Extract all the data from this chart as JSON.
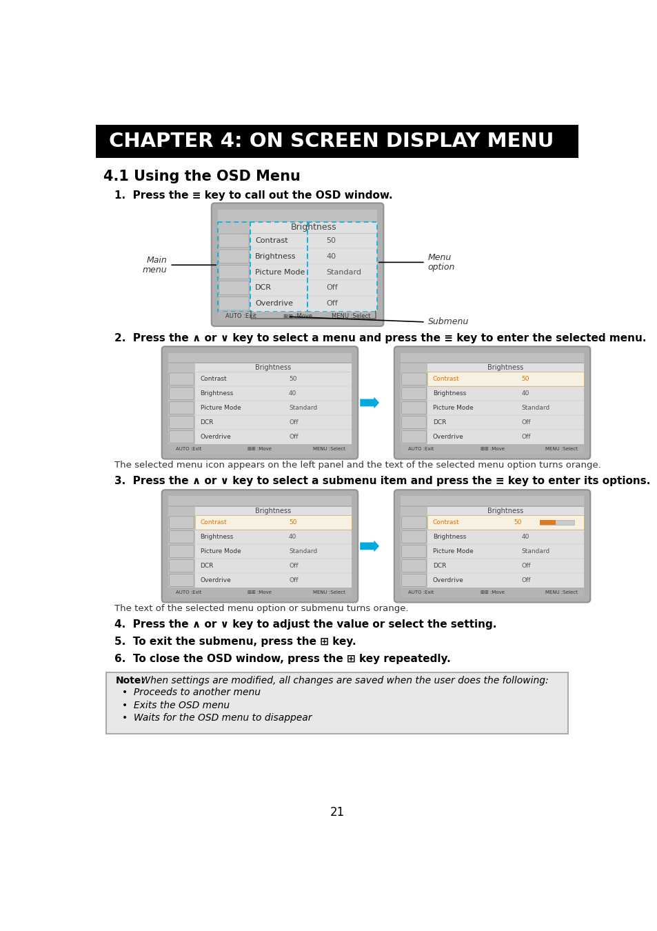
{
  "title": "CHAPTER 4: ON SCREEN DISPLAY MENU",
  "title_bg": "#000000",
  "title_fg": "#ffffff",
  "section_title": "4.1 Using the OSD Menu",
  "step1_label": "1.",
  "step1_main": "  Press the",
  "step1_key": " ≡",
  "step1_rest": " key to call out the OSD window.",
  "step2_text": "2.  Press the ∧ or ∨ key to select a menu and press the ≡ key to enter the selected menu.",
  "step3_text": "3.  Press the ∧ or ∨ key to select a submenu item and press the ≡ key to enter its options.",
  "step4_text": "4.  Press the ∧ or ∨ key to adjust the value or select the setting.",
  "step5_text": "5.  To exit the submenu, press the ⊞ key.",
  "step6_text": "6.  To close the OSD window, press the ⊞ key repeatedly.",
  "step2_desc": "The selected menu icon appears on the left panel and the text of the selected menu option turns orange.",
  "step3_desc": "The text of the selected menu option or submenu turns orange.",
  "note_bold": "Note:",
  "note_italic": " When settings are modified, all changes are saved when the user does the following:",
  "note_bullets": [
    "Proceeds to another menu",
    "Exits the OSD menu",
    "Waits for the OSD menu to disappear"
  ],
  "page_number": "21",
  "osd_menu_rows": [
    "Contrast",
    "Brightness",
    "Picture Mode",
    "DCR",
    "Overdrive"
  ],
  "osd_menu_values": [
    "50",
    "40",
    "Standard",
    "Off",
    "Off"
  ],
  "osd_menu_title": "Brightness",
  "bg_color": "#ffffff",
  "panel_outer_bg": "#aaaaaa",
  "panel_inner_bg": "#c8c8c8",
  "icon_panel_bg": "#b8b8b8",
  "content_bg": "#d8d8d8",
  "topbar_bg": "#bbbbbb",
  "botbar_bg": "#aaaaaa",
  "highlight_orange_bg": "#f5a030",
  "highlight_orange_text": "#e87000",
  "dashed_blue": "#00b0e0",
  "arrow_fill": "#00aadd",
  "text_dark": "#333333",
  "text_mid": "#555555"
}
